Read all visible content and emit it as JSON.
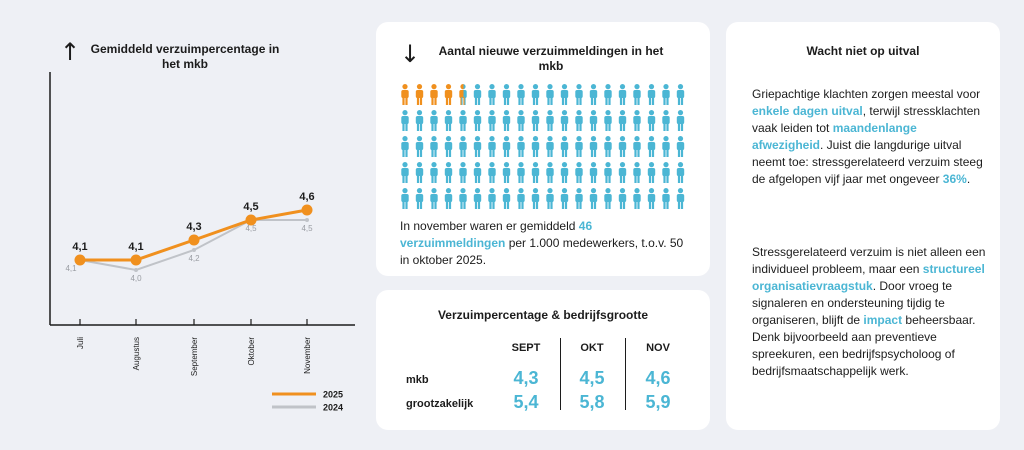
{
  "chart": {
    "arrow": "↑",
    "title": "Gemiddeld verzuimpercentage in het mkb"
  },
  "chart_data": {
    "type": "line",
    "title": "Gemiddeld verzuimpercentage in het mkb",
    "categories": [
      "Juli",
      "Augustus",
      "September",
      "Oktober",
      "November"
    ],
    "series": [
      {
        "name": "2025",
        "color": "#f0901e",
        "values": [
          4.1,
          4.1,
          4.3,
          4.5,
          4.6
        ],
        "labels": [
          "4,1",
          "4,1",
          "4,3",
          "4,5",
          "4,6"
        ]
      },
      {
        "name": "2024",
        "color": "#c0c3c8",
        "values": [
          4.1,
          4.0,
          4.2,
          4.5,
          4.5
        ],
        "labels": [
          "4,1",
          "4,0",
          "4,2",
          "4,5",
          "4,5"
        ]
      }
    ],
    "legend": [
      "2025",
      "2024"
    ],
    "legend_position": "bottom-right"
  },
  "messages": {
    "arrow": "↓",
    "title": "Aantal nieuwe verzuimmeldingen in het mkb",
    "total_icons": 100,
    "highlighted_icons": 4.6,
    "colors": {
      "highlight": "#f0901e",
      "base": "#4bb6d4"
    },
    "text_before": "In november waren er gemiddeld ",
    "text_highlight": "46 verzuimmeldingen",
    "text_after": " per 1.000 medewerkers, t.o.v. 50 in oktober 2025."
  },
  "table": {
    "title": "Verzuimpercentage & bedrijfsgrootte",
    "columns": [
      "SEPT",
      "OKT",
      "NOV"
    ],
    "rows": [
      {
        "label": "mkb",
        "values": [
          "4,3",
          "4,5",
          "4,6"
        ]
      },
      {
        "label": "grootzakelijk",
        "values": [
          "5,4",
          "5,8",
          "5,9"
        ]
      }
    ]
  },
  "info": {
    "title": "Wacht niet op uitval",
    "p1_a": "Griepachtige klachten zorgen meestal voor ",
    "p1_b": "enkele dagen uitval",
    "p1_c": ", terwijl stressklachten vaak leiden tot ",
    "p1_d": "maandenlange afwezigheid",
    "p1_e": ". Juist die langdurige uitval neemt toe: stressgerelateerd verzuim steeg de afgelopen vijf jaar met ongeveer ",
    "p1_f": "36%",
    "p1_g": ".",
    "p2_a": "Stressgerelateerd verzuim is niet alleen een individueel probleem, maar een ",
    "p2_b": "structureel organisatievraagstuk",
    "p2_c": ". Door vroeg te signaleren en ondersteuning tijdig te organiseren, blijft de ",
    "p2_d": "impact",
    "p2_e": " beheersbaar. Denk bijvoorbeeld aan preventieve spreekuren, een bedrijfspsycholoog of bedrijfsmaatschappelijk werk."
  }
}
